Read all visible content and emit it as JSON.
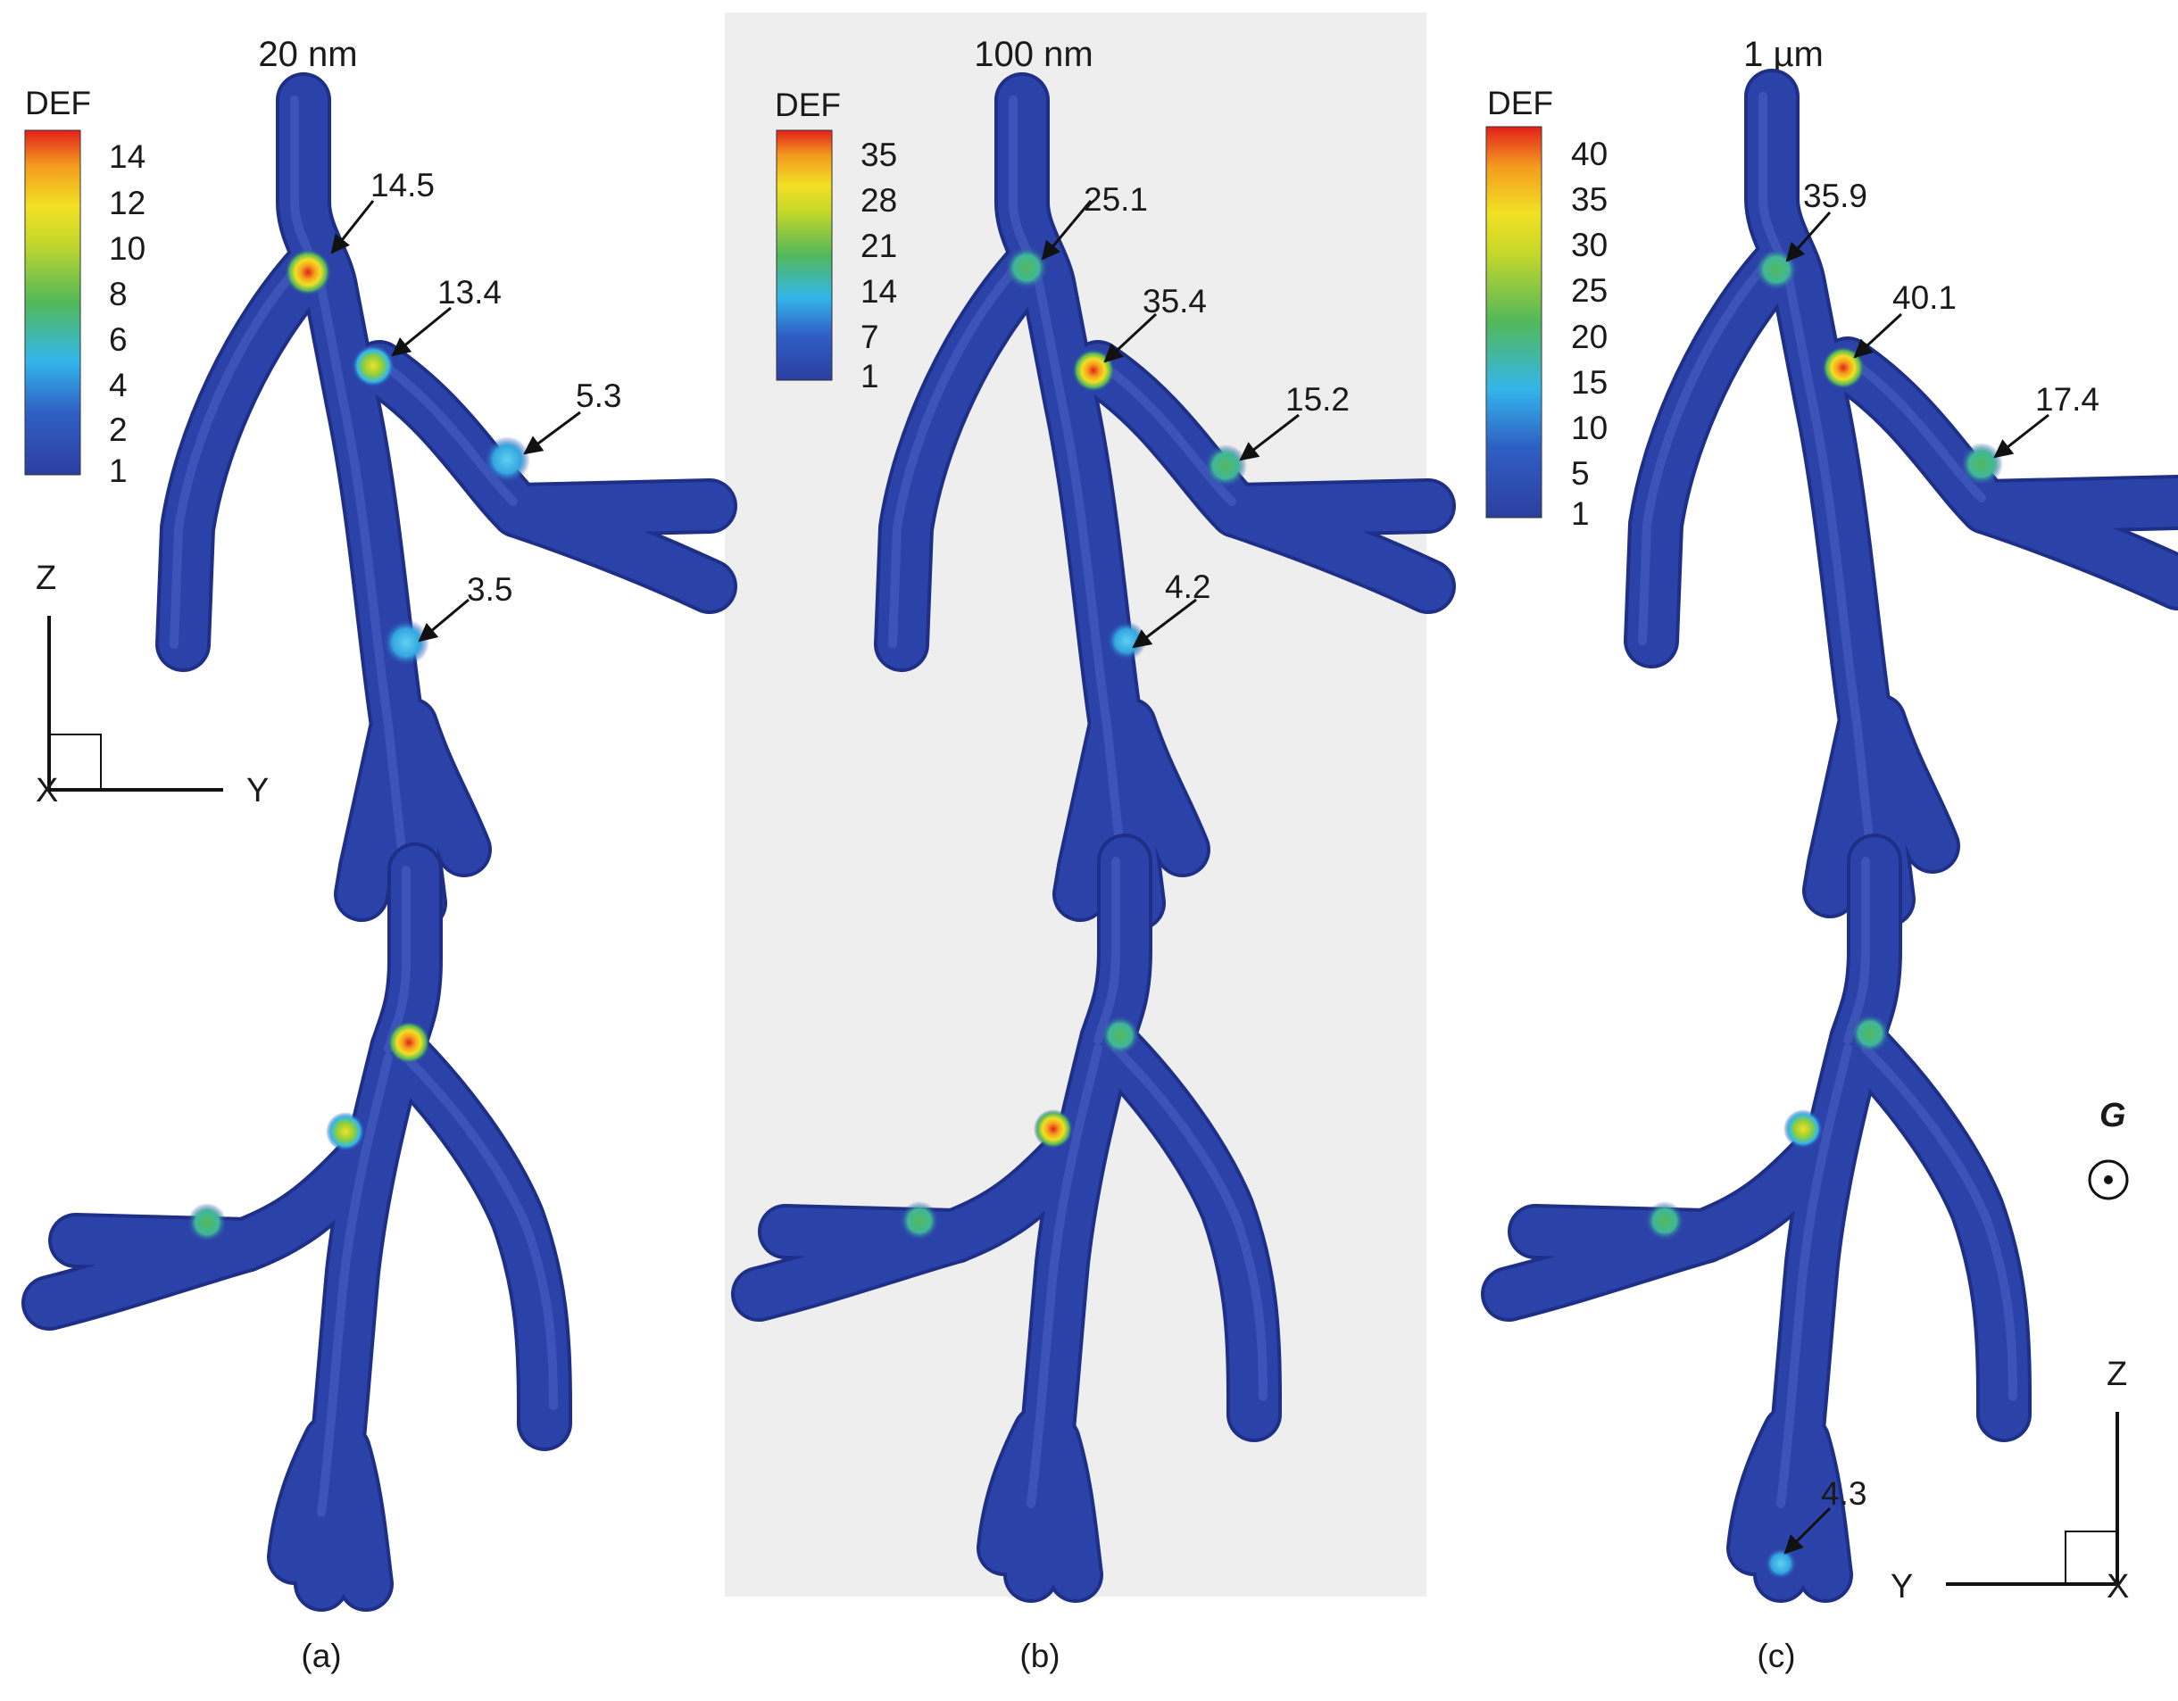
{
  "panels": [
    {
      "id": "a",
      "title": "20 nm",
      "caption": "(a)",
      "colorbar": {
        "label": "DEF",
        "ticks": [
          "14",
          "12",
          "10",
          "8",
          "6",
          "4",
          "2",
          "1"
        ]
      },
      "annotations_top": [
        "14.5",
        "13.4",
        "5.3",
        "3.5"
      ],
      "annotations_bottom": []
    },
    {
      "id": "b",
      "title": "100 nm",
      "caption": "(b)",
      "colorbar": {
        "label": "DEF",
        "ticks": [
          "35",
          "28",
          "21",
          "14",
          "7",
          "1"
        ]
      },
      "annotations_top": [
        "25.1",
        "35.4",
        "15.2",
        "4.2"
      ],
      "annotations_bottom": []
    },
    {
      "id": "c",
      "title": "1 µm",
      "caption": "(c)",
      "colorbar": {
        "label": "DEF",
        "ticks": [
          "40",
          "35",
          "30",
          "25",
          "20",
          "15",
          "10",
          "5",
          "1"
        ]
      },
      "annotations_top": [
        "35.9",
        "40.1",
        "17.4"
      ],
      "annotations_bottom": [
        "4.3"
      ]
    }
  ],
  "axes_top": {
    "vertical": "Z",
    "horizontal": "Y",
    "out_of_plane": "X"
  },
  "axes_bottom": {
    "vertical": "Z",
    "horizontal": "Y",
    "out_of_plane": "X"
  },
  "gravity": {
    "symbol": "G"
  },
  "colors": {
    "vessel": "#2b43a8",
    "vessel_edge": "#1d2f86",
    "panel_b_bg": "#eeeeef",
    "colorbar_stops": [
      "#2c3fa0",
      "#33b6ea",
      "#52b85a",
      "#f2e024",
      "#f39a1e",
      "#e3201b"
    ]
  }
}
